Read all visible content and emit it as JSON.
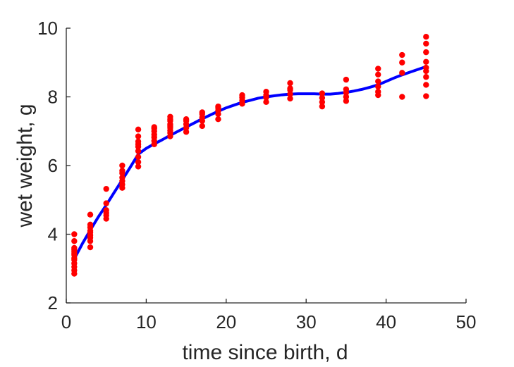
{
  "chart_data": {
    "type": "scatter",
    "title": "",
    "xlabel": "time since birth, d",
    "ylabel": "wet weight, g",
    "xlim": [
      0,
      50
    ],
    "ylim": [
      2,
      10
    ],
    "xticks": [
      0,
      10,
      20,
      30,
      40,
      50
    ],
    "yticks": [
      2,
      4,
      6,
      8,
      10
    ],
    "grid": false,
    "colors": {
      "points": "#ff0000",
      "line": "#0000ff",
      "axis": "#262626"
    },
    "series": [
      {
        "kind": "scatter",
        "x": [
          1,
          1,
          1,
          1,
          1,
          1,
          1,
          1,
          1,
          1,
          1,
          1,
          1,
          3,
          3,
          3,
          3,
          3,
          3,
          3,
          3,
          3,
          5,
          5,
          5,
          5,
          5,
          5,
          7,
          7,
          7,
          7,
          7,
          7,
          7,
          9,
          9,
          9,
          9,
          9,
          9,
          9,
          9,
          9,
          11,
          11,
          11,
          11,
          11,
          11,
          11,
          13,
          13,
          13,
          13,
          13,
          13,
          13,
          13,
          13,
          15,
          15,
          15,
          15,
          15,
          17,
          17,
          17,
          17,
          17,
          19,
          19,
          19,
          19,
          19,
          22,
          22,
          22,
          22,
          25,
          25,
          25,
          25,
          28,
          28,
          28,
          28,
          28,
          32,
          32,
          32,
          32,
          35,
          35,
          35,
          35,
          35,
          39,
          39,
          39,
          39,
          39,
          39,
          42,
          42,
          42,
          42,
          45,
          45,
          45,
          45,
          45,
          45,
          45,
          45,
          45
        ],
        "y": [
          2.85,
          2.95,
          3.05,
          3.15,
          3.25,
          3.3,
          3.4,
          3.45,
          3.5,
          3.55,
          3.6,
          3.8,
          4.0,
          3.62,
          3.8,
          3.9,
          3.97,
          4.05,
          4.1,
          4.2,
          4.28,
          4.57,
          4.45,
          4.55,
          4.62,
          4.7,
          4.9,
          5.32,
          5.35,
          5.45,
          5.55,
          5.65,
          5.78,
          5.85,
          6.0,
          5.97,
          6.1,
          6.25,
          6.42,
          6.55,
          6.62,
          6.7,
          6.85,
          7.05,
          6.62,
          6.72,
          6.82,
          6.9,
          7.0,
          7.08,
          7.12,
          6.85,
          6.95,
          7.02,
          7.1,
          7.15,
          7.2,
          7.3,
          7.35,
          7.42,
          6.98,
          7.1,
          7.2,
          7.3,
          7.35,
          7.15,
          7.3,
          7.4,
          7.5,
          7.55,
          7.35,
          7.5,
          7.6,
          7.68,
          7.72,
          7.8,
          7.9,
          7.98,
          8.05,
          7.85,
          7.98,
          8.05,
          8.15,
          7.95,
          8.08,
          8.2,
          8.25,
          8.4,
          7.72,
          7.85,
          7.97,
          8.1,
          7.88,
          8.0,
          8.12,
          8.22,
          8.5,
          8.05,
          8.15,
          8.3,
          8.45,
          8.65,
          8.82,
          8.0,
          8.7,
          9.0,
          9.22,
          8.02,
          8.35,
          8.58,
          8.75,
          8.85,
          9.02,
          9.3,
          9.55,
          9.75
        ]
      },
      {
        "kind": "line",
        "x": [
          1,
          2,
          3,
          4,
          5,
          6,
          7,
          8,
          9,
          10,
          11,
          12,
          13,
          14,
          15,
          16,
          17,
          18,
          19,
          20,
          21,
          22,
          23,
          24,
          25,
          26,
          27,
          28,
          29,
          30,
          31,
          32,
          33,
          34,
          35,
          36,
          37,
          38,
          39,
          40,
          41,
          42,
          43,
          44,
          45
        ],
        "y": [
          3.28,
          3.72,
          4.12,
          4.5,
          4.85,
          5.22,
          5.58,
          5.95,
          6.33,
          6.5,
          6.63,
          6.75,
          6.88,
          7.0,
          7.12,
          7.24,
          7.36,
          7.47,
          7.58,
          7.68,
          7.76,
          7.84,
          7.9,
          7.96,
          8.0,
          8.03,
          8.06,
          8.08,
          8.09,
          8.09,
          8.09,
          8.08,
          8.08,
          8.1,
          8.13,
          8.17,
          8.22,
          8.28,
          8.35,
          8.45,
          8.55,
          8.64,
          8.72,
          8.8,
          8.88
        ]
      }
    ]
  }
}
